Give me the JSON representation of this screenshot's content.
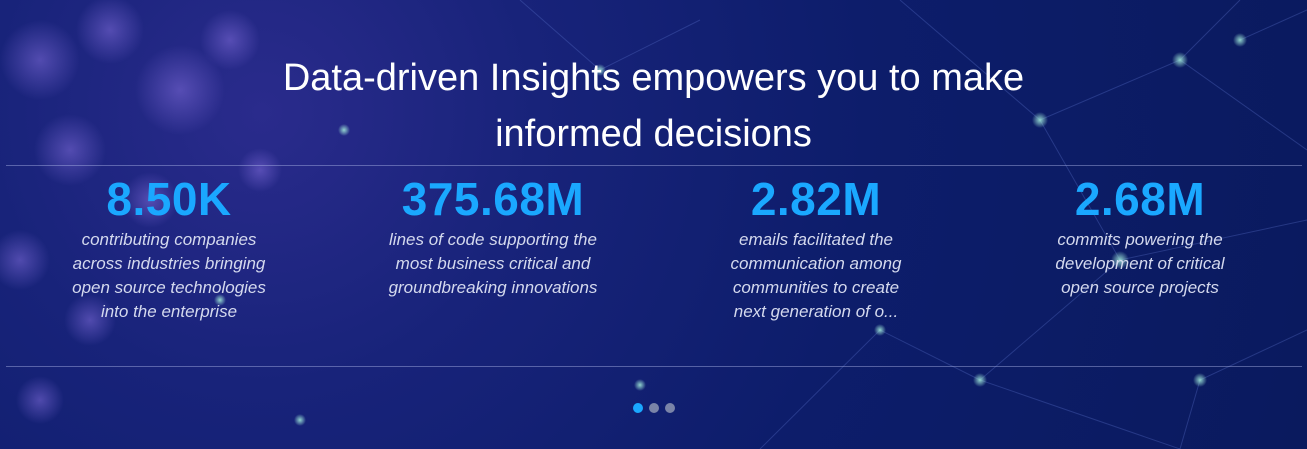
{
  "hero": {
    "headline_line1": "Data-driven Insights empowers you to make",
    "headline_line2": "informed decisions"
  },
  "stats": [
    {
      "value": "8.50K",
      "description": "contributing companies across industries bringing open source technologies into the enterprise"
    },
    {
      "value": "375.68M",
      "description": "lines of code supporting the most business critical and groundbreaking innovations"
    },
    {
      "value": "2.82M",
      "description": "emails facilitated the communication among communities to create next generation of o..."
    },
    {
      "value": "2.68M",
      "description": "commits powering the development of critical open source projects"
    }
  ],
  "carousel": {
    "page_count": 3,
    "active_index": 0
  },
  "colors": {
    "background": "#0d1d6b",
    "accent": "#1aa8ff",
    "headline": "#ffffff",
    "description": "#d4d9ee",
    "dot_inactive": "#7a84a8"
  }
}
